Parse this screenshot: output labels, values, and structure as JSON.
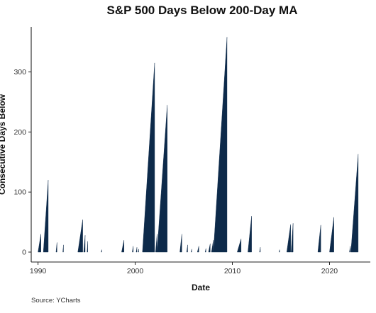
{
  "chart_data": {
    "type": "area",
    "title": "S&P 500 Days Below 200-Day MA",
    "xlabel": "Date",
    "ylabel": "Consecutive Days Below",
    "source": "Source: YCharts",
    "xlim": [
      1989.3,
      2024.2
    ],
    "ylim": [
      0,
      375
    ],
    "x_ticks": [
      1990,
      2000,
      2010,
      2020
    ],
    "x_tick_labels": [
      "1990",
      "2000",
      "2010",
      "2020"
    ],
    "y_ticks": [
      0,
      100,
      200,
      300
    ],
    "y_tick_labels": [
      "0",
      "100",
      "200",
      "300"
    ],
    "grid": false,
    "series": [
      {
        "color": "#0d2a4a",
        "episodes": [
          {
            "start": 1990.0,
            "end": 1990.3,
            "peak": 30
          },
          {
            "start": 1990.55,
            "end": 1991.05,
            "peak": 120
          },
          {
            "start": 1991.85,
            "end": 1991.95,
            "peak": 16
          },
          {
            "start": 1992.55,
            "end": 1992.62,
            "peak": 12
          },
          {
            "start": 1994.1,
            "end": 1994.6,
            "peak": 54
          },
          {
            "start": 1994.7,
            "end": 1994.85,
            "peak": 28
          },
          {
            "start": 1995.05,
            "end": 1995.12,
            "peak": 18
          },
          {
            "start": 1996.5,
            "end": 1996.55,
            "peak": 4
          },
          {
            "start": 1998.6,
            "end": 1998.85,
            "peak": 20
          },
          {
            "start": 1999.7,
            "end": 1999.8,
            "peak": 10
          },
          {
            "start": 2000.1,
            "end": 2000.18,
            "peak": 8
          },
          {
            "start": 2000.3,
            "end": 2000.36,
            "peak": 5
          },
          {
            "start": 2000.75,
            "end": 2002.0,
            "peak": 315
          },
          {
            "start": 2002.1,
            "end": 2002.25,
            "peak": 30
          },
          {
            "start": 2002.25,
            "end": 2003.3,
            "peak": 245
          },
          {
            "start": 2004.6,
            "end": 2004.8,
            "peak": 30
          },
          {
            "start": 2005.3,
            "end": 2005.4,
            "peak": 12
          },
          {
            "start": 2005.75,
            "end": 2005.82,
            "peak": 5
          },
          {
            "start": 2006.4,
            "end": 2006.55,
            "peak": 10
          },
          {
            "start": 2007.2,
            "end": 2007.28,
            "peak": 6
          },
          {
            "start": 2007.55,
            "end": 2007.72,
            "peak": 14
          },
          {
            "start": 2007.85,
            "end": 2008.05,
            "peak": 20
          },
          {
            "start": 2008.05,
            "end": 2009.45,
            "peak": 358
          },
          {
            "start": 2010.5,
            "end": 2010.9,
            "peak": 22
          },
          {
            "start": 2011.6,
            "end": 2011.98,
            "peak": 60
          },
          {
            "start": 2012.8,
            "end": 2012.88,
            "peak": 8
          },
          {
            "start": 2014.8,
            "end": 2014.86,
            "peak": 4
          },
          {
            "start": 2015.6,
            "end": 2016.0,
            "peak": 46
          },
          {
            "start": 2016.05,
            "end": 2016.25,
            "peak": 48
          },
          {
            "start": 2018.8,
            "end": 2019.1,
            "peak": 45
          },
          {
            "start": 2020.0,
            "end": 2020.45,
            "peak": 58
          },
          {
            "start": 2022.05,
            "end": 2022.15,
            "peak": 10
          },
          {
            "start": 2022.2,
            "end": 2022.95,
            "peak": 163
          }
        ]
      }
    ]
  }
}
